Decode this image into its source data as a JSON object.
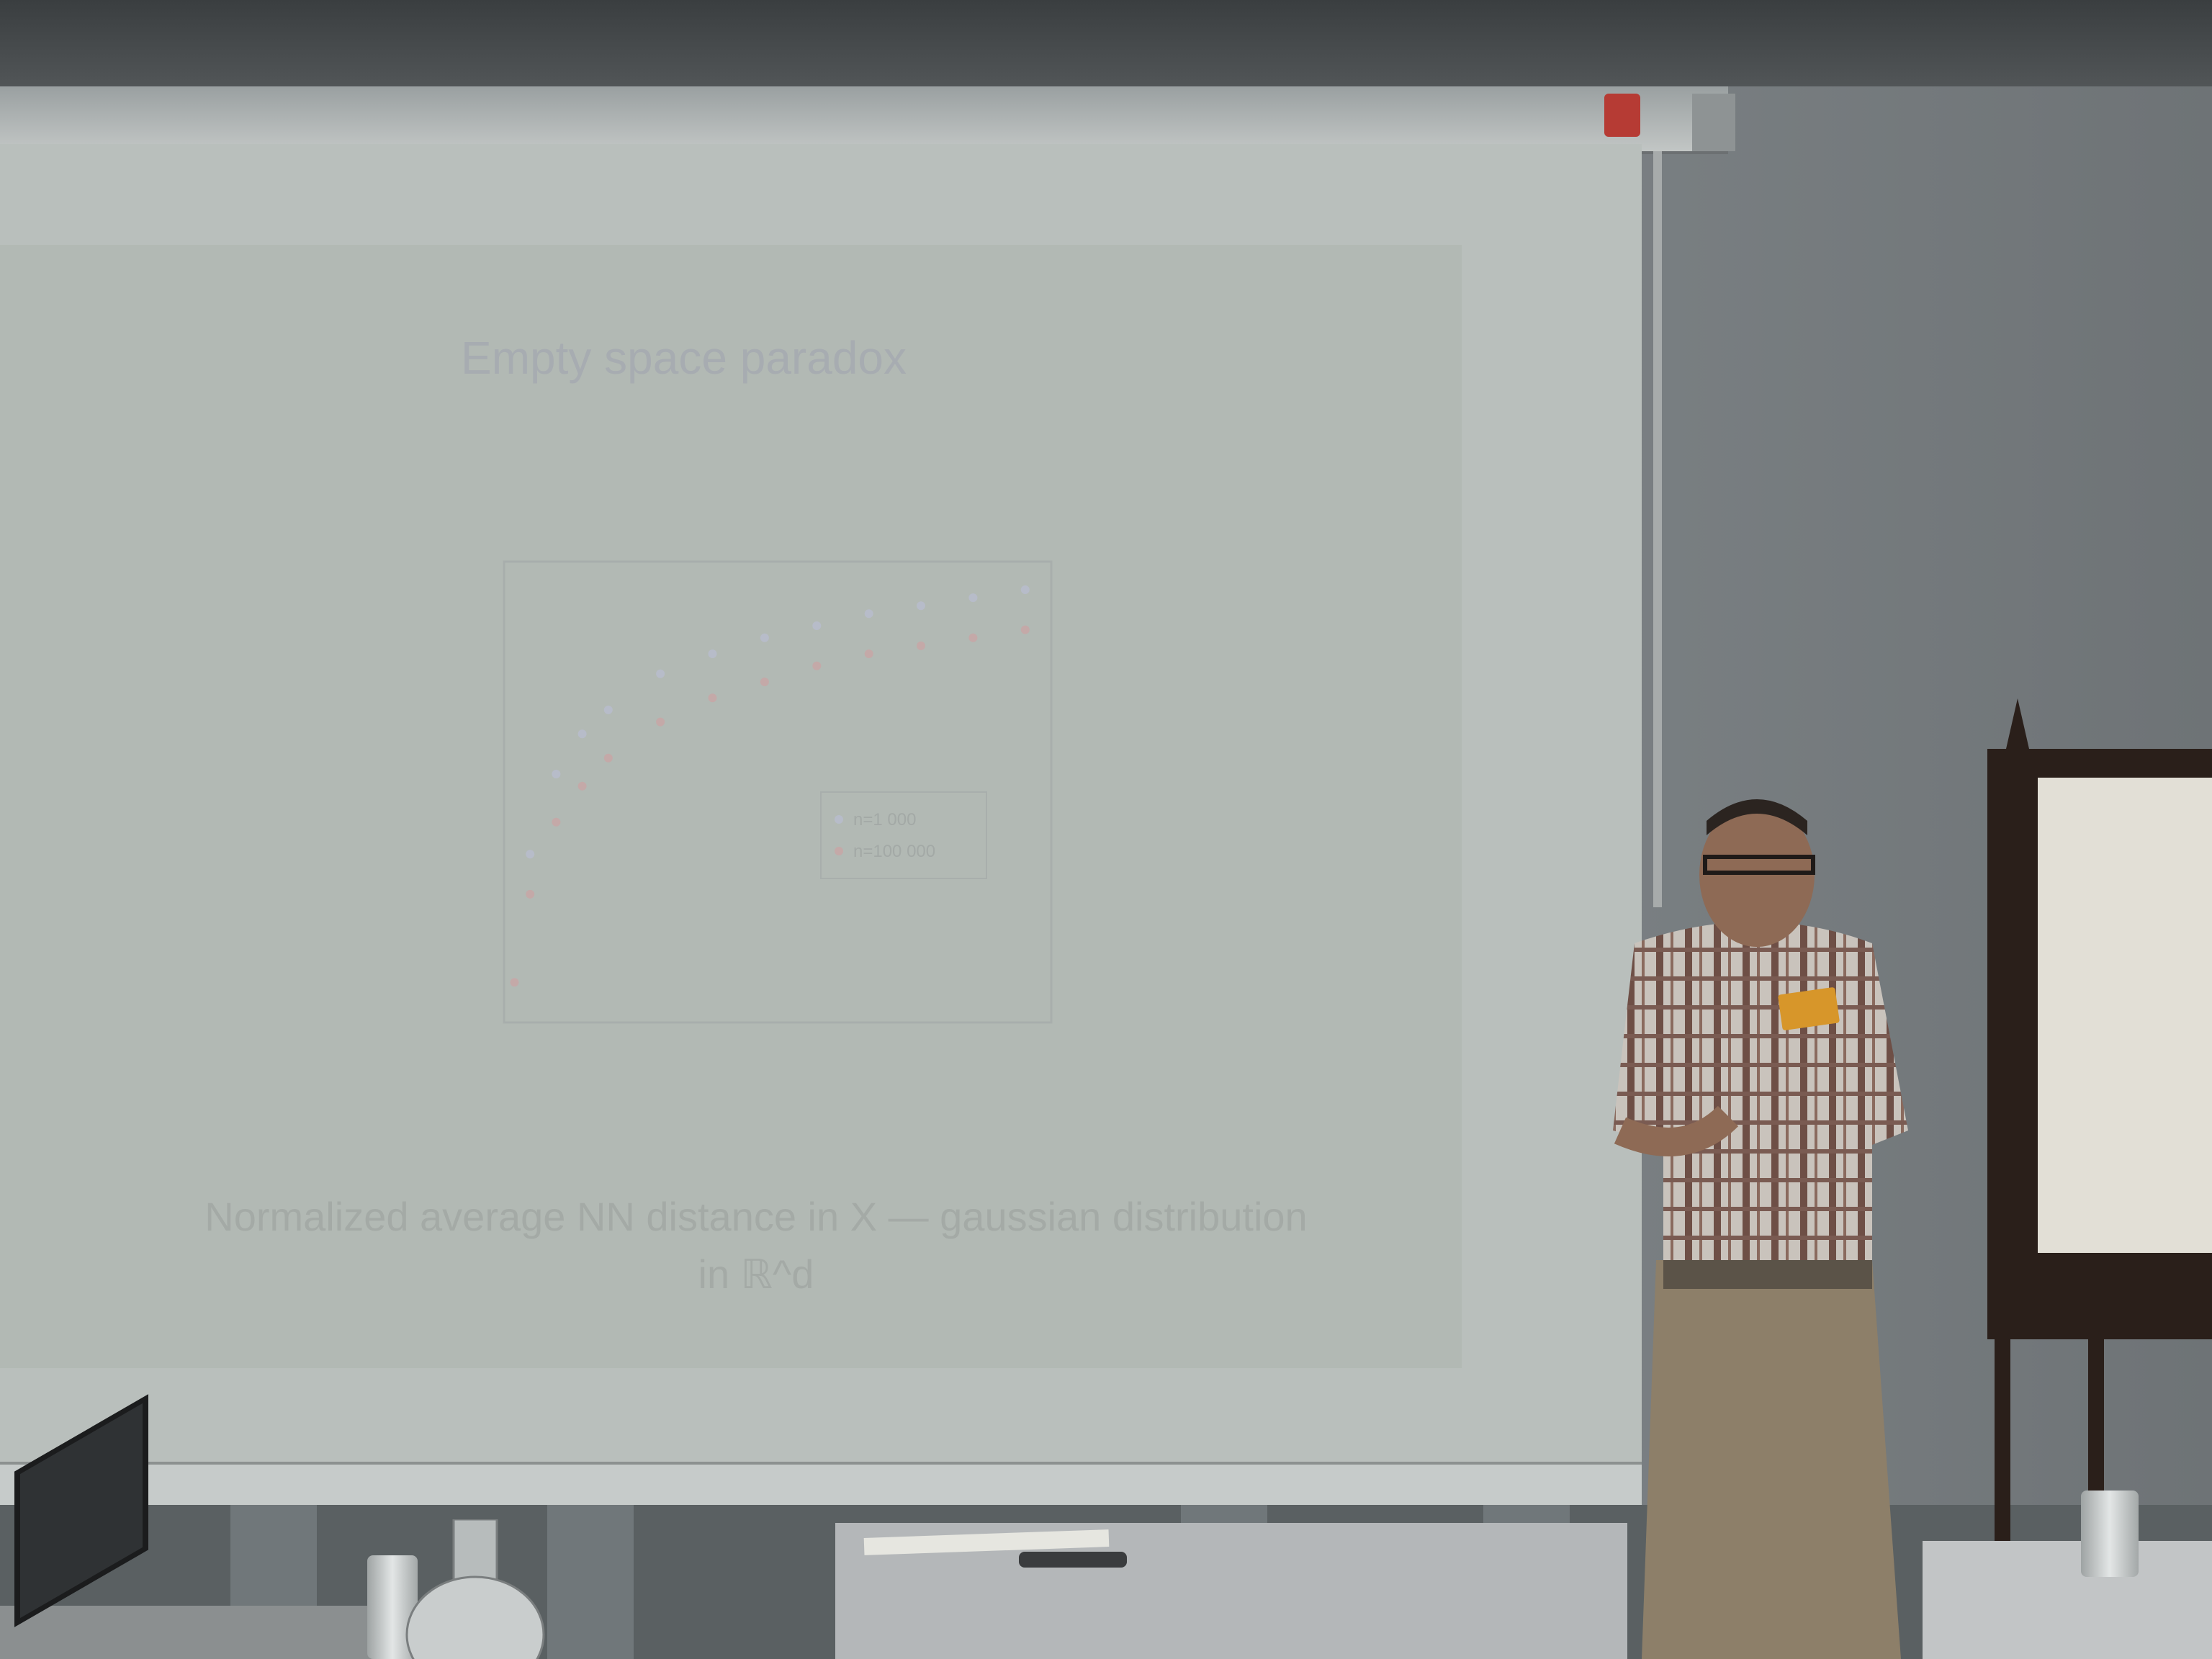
{
  "slide": {
    "title": "Empty space paradox",
    "caption_line1": "Normalized average NN distance in X — gaussian distribution",
    "caption_line2": "in ℝ^d"
  },
  "chart_data": {
    "type": "scatter",
    "title": "",
    "xlabel": "",
    "ylabel": "",
    "series": [
      {
        "name": "n=1 000",
        "color": "#b7bcc9",
        "points": [
          [
            2,
            0.3
          ],
          [
            5,
            0.62
          ],
          [
            10,
            0.82
          ],
          [
            15,
            0.92
          ],
          [
            20,
            0.98
          ],
          [
            30,
            1.07
          ],
          [
            40,
            1.12
          ],
          [
            50,
            1.16
          ],
          [
            60,
            1.19
          ],
          [
            70,
            1.22
          ],
          [
            80,
            1.24
          ],
          [
            90,
            1.26
          ],
          [
            100,
            1.28
          ]
        ]
      },
      {
        "name": "n=100 000",
        "color": "#c4a9a8",
        "points": [
          [
            2,
            0.3
          ],
          [
            5,
            0.52
          ],
          [
            10,
            0.7
          ],
          [
            15,
            0.79
          ],
          [
            20,
            0.86
          ],
          [
            30,
            0.95
          ],
          [
            40,
            1.01
          ],
          [
            50,
            1.05
          ],
          [
            60,
            1.09
          ],
          [
            70,
            1.12
          ],
          [
            80,
            1.14
          ],
          [
            90,
            1.16
          ],
          [
            100,
            1.18
          ]
        ]
      }
    ],
    "xlim": [
      0,
      105
    ],
    "ylim": [
      0.2,
      1.35
    ],
    "legend": "center-right",
    "grid": false
  },
  "colors": {
    "slide_background": "#b2b9b4",
    "screen": "#b9bfbc",
    "nametag": "#d7962a"
  }
}
